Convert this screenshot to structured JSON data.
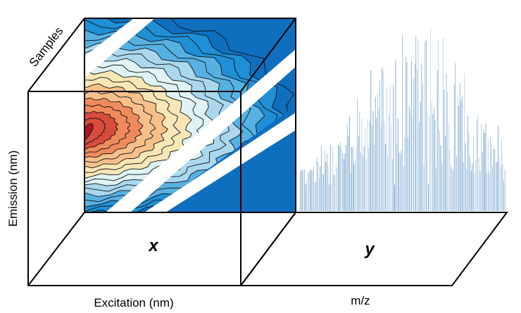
{
  "labels": {
    "samples": "Samples",
    "emission": "Emission (nm)",
    "excitation": "Excitation (nm)",
    "mz": "m/z",
    "x": "x",
    "y": "y"
  },
  "colors": {
    "outline": "#000000",
    "contour_line": "#111111",
    "mass_spec_line": "#2f73b6",
    "contour_palette": [
      "#b3122a",
      "#d94c3d",
      "#ef8a5c",
      "#f7c08a",
      "#f8e7b6",
      "#dff2f4",
      "#a9d8ee",
      "#56b1e3",
      "#1f8fd6",
      "#0f6fbf"
    ],
    "scatter_band": "#ffffff"
  },
  "chart_data": [
    {
      "type": "heatmap",
      "title": "x",
      "xlabel": "Excitation (nm)",
      "ylabel": "Emission (nm)",
      "description_of_content": "EEM fluorescence contour landscape with peak at low excitation / mid emission and Rayleigh scatter bands"
    },
    {
      "type": "bar",
      "title": "y",
      "xlabel": "m/z",
      "ylabel": ""
    }
  ]
}
